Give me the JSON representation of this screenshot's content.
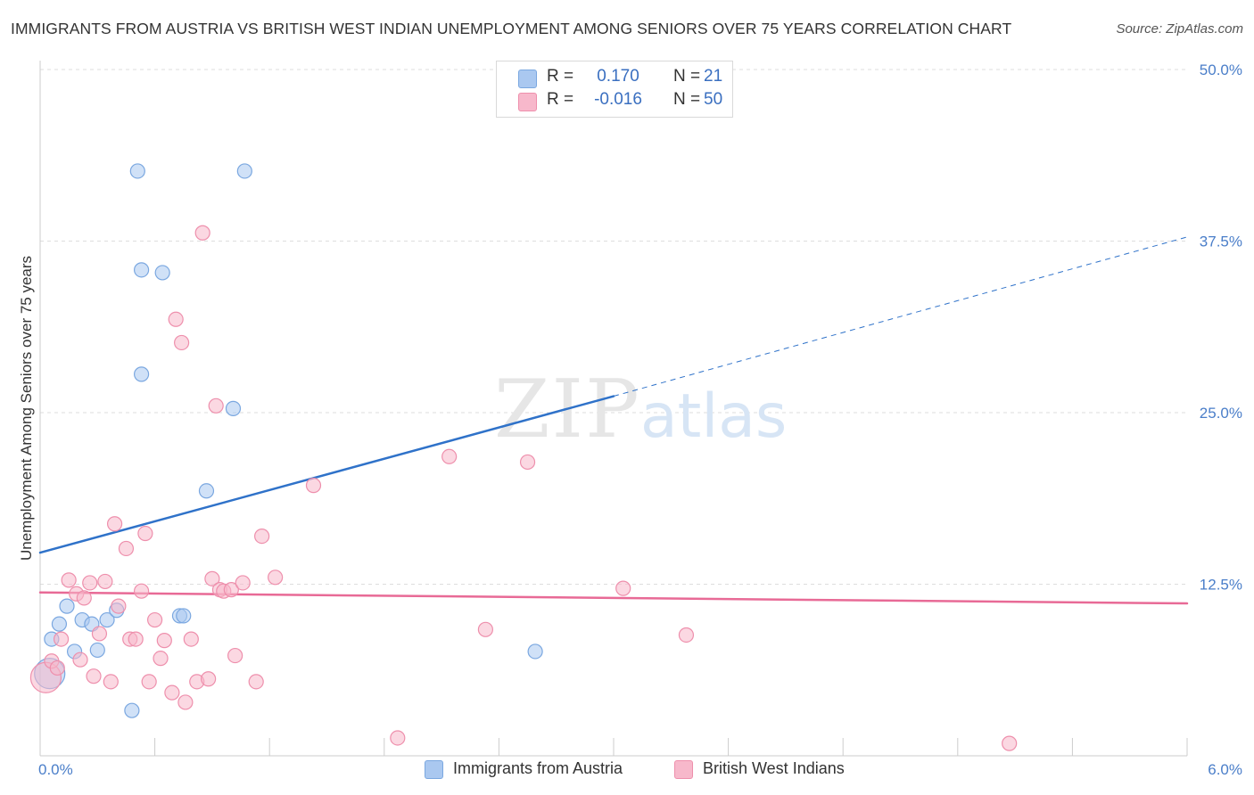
{
  "header": {
    "title": "IMMIGRANTS FROM AUSTRIA VS BRITISH WEST INDIAN UNEMPLOYMENT AMONG SENIORS OVER 75 YEARS CORRELATION CHART",
    "source": "Source: ZipAtlas.com"
  },
  "legend": {
    "rows": [
      {
        "r_label": "R =",
        "r_value": "0.170",
        "n_label": "N =",
        "n_value": "21",
        "color": "#aac8f0"
      },
      {
        "r_label": "R =",
        "r_value": "-0.016",
        "n_label": "N =",
        "n_value": "50",
        "color": "#f7b8cb"
      }
    ]
  },
  "watermark": {
    "zip": "ZIP",
    "atlas": "atlas"
  },
  "chart_data": {
    "type": "scatter",
    "title": "IMMIGRANTS FROM AUSTRIA VS BRITISH WEST INDIAN UNEMPLOYMENT AMONG SENIORS OVER 75 YEARS CORRELATION CHART",
    "xlabel": "",
    "ylabel": "Unemployment Among Seniors over 75 years",
    "xlim": [
      0,
      6
    ],
    "ylim": [
      0,
      50
    ],
    "x_tick_labels": [
      "0.0%",
      "6.0%"
    ],
    "y_ticks": [
      12.5,
      25.0,
      37.5,
      50.0
    ],
    "y_tick_labels": [
      "12.5%",
      "25.0%",
      "37.5%",
      "50.0%"
    ],
    "grid": "horizontal dashed",
    "series": [
      {
        "name": "Immigrants from Austria",
        "color": "#aac8f0",
        "stroke": "#7aa7e0",
        "line_color": "#2f72c9",
        "trend": {
          "x0": 0,
          "y0": 14.8,
          "x1": 3.0,
          "y1": 26.2,
          "dash_to_x": 6.0,
          "dash_to_y": 37.8
        },
        "points": [
          {
            "x": 0.05,
            "y": 6.0,
            "big": true
          },
          {
            "x": 0.06,
            "y": 8.5
          },
          {
            "x": 0.1,
            "y": 9.6
          },
          {
            "x": 0.14,
            "y": 10.9
          },
          {
            "x": 0.18,
            "y": 7.6
          },
          {
            "x": 0.22,
            "y": 9.9
          },
          {
            "x": 0.27,
            "y": 9.6
          },
          {
            "x": 0.3,
            "y": 7.7
          },
          {
            "x": 0.35,
            "y": 9.9
          },
          {
            "x": 0.4,
            "y": 10.6
          },
          {
            "x": 0.48,
            "y": 3.3
          },
          {
            "x": 0.53,
            "y": 27.8
          },
          {
            "x": 0.51,
            "y": 42.6
          },
          {
            "x": 0.53,
            "y": 35.4
          },
          {
            "x": 0.64,
            "y": 35.2
          },
          {
            "x": 0.73,
            "y": 10.2
          },
          {
            "x": 0.75,
            "y": 10.2
          },
          {
            "x": 0.87,
            "y": 19.3
          },
          {
            "x": 1.01,
            "y": 25.3
          },
          {
            "x": 1.07,
            "y": 42.6
          },
          {
            "x": 2.59,
            "y": 7.6
          }
        ]
      },
      {
        "name": "British West Indians",
        "color": "#f7b8cb",
        "stroke": "#ee8fac",
        "line_color": "#e86a96",
        "trend": {
          "x0": 0,
          "y0": 11.9,
          "x1": 6.0,
          "y1": 11.1
        },
        "points": [
          {
            "x": 0.03,
            "y": 5.7,
            "big": true
          },
          {
            "x": 0.06,
            "y": 6.9
          },
          {
            "x": 0.09,
            "y": 6.4
          },
          {
            "x": 0.11,
            "y": 8.5
          },
          {
            "x": 0.15,
            "y": 12.8
          },
          {
            "x": 0.19,
            "y": 11.8
          },
          {
            "x": 0.21,
            "y": 7.0
          },
          {
            "x": 0.23,
            "y": 11.5
          },
          {
            "x": 0.26,
            "y": 12.6
          },
          {
            "x": 0.28,
            "y": 5.8
          },
          {
            "x": 0.31,
            "y": 8.9
          },
          {
            "x": 0.34,
            "y": 12.7
          },
          {
            "x": 0.37,
            "y": 5.4
          },
          {
            "x": 0.39,
            "y": 16.9
          },
          {
            "x": 0.41,
            "y": 10.9
          },
          {
            "x": 0.45,
            "y": 15.1
          },
          {
            "x": 0.47,
            "y": 8.5
          },
          {
            "x": 0.5,
            "y": 8.5
          },
          {
            "x": 0.53,
            "y": 12.0
          },
          {
            "x": 0.55,
            "y": 16.2
          },
          {
            "x": 0.57,
            "y": 5.4
          },
          {
            "x": 0.6,
            "y": 9.9
          },
          {
            "x": 0.63,
            "y": 7.1
          },
          {
            "x": 0.65,
            "y": 8.4
          },
          {
            "x": 0.69,
            "y": 4.6
          },
          {
            "x": 0.71,
            "y": 31.8
          },
          {
            "x": 0.74,
            "y": 30.1
          },
          {
            "x": 0.76,
            "y": 3.9
          },
          {
            "x": 0.79,
            "y": 8.5
          },
          {
            "x": 0.82,
            "y": 5.4
          },
          {
            "x": 0.85,
            "y": 38.1
          },
          {
            "x": 0.88,
            "y": 5.6
          },
          {
            "x": 0.9,
            "y": 12.9
          },
          {
            "x": 0.92,
            "y": 25.5
          },
          {
            "x": 0.94,
            "y": 12.1
          },
          {
            "x": 0.96,
            "y": 12.0
          },
          {
            "x": 1.0,
            "y": 12.1
          },
          {
            "x": 1.02,
            "y": 7.3
          },
          {
            "x": 1.06,
            "y": 12.6
          },
          {
            "x": 1.13,
            "y": 5.4
          },
          {
            "x": 1.16,
            "y": 16.0
          },
          {
            "x": 1.23,
            "y": 13.0
          },
          {
            "x": 1.43,
            "y": 19.7
          },
          {
            "x": 1.87,
            "y": 1.3
          },
          {
            "x": 2.14,
            "y": 21.8
          },
          {
            "x": 2.33,
            "y": 9.2
          },
          {
            "x": 2.55,
            "y": 21.4
          },
          {
            "x": 3.05,
            "y": 12.2
          },
          {
            "x": 3.38,
            "y": 8.8
          },
          {
            "x": 5.07,
            "y": 0.9
          }
        ]
      }
    ]
  }
}
